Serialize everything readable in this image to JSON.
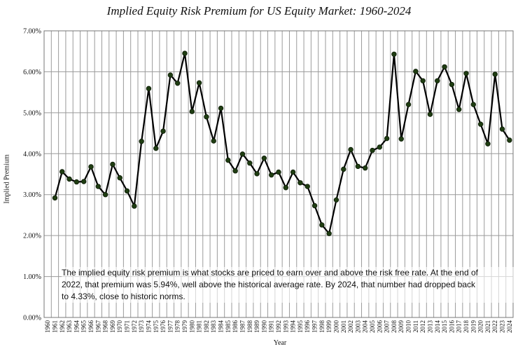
{
  "chart_data": {
    "type": "line",
    "title": "Implied Equity Risk Premium for US Equity Market: 1960-2024",
    "xlabel": "Year",
    "ylabel": "Implied Premium",
    "ylim": [
      0,
      7
    ],
    "y_ticks": [
      "0.00%",
      "1.00%",
      "2.00%",
      "3.00%",
      "4.00%",
      "5.00%",
      "6.00%",
      "7.00%"
    ],
    "grid": true,
    "x": [
      "1960",
      "1961",
      "1962",
      "1963",
      "1964",
      "1965",
      "1966",
      "1967",
      "1968",
      "1969",
      "1970",
      "1971",
      "1972",
      "1973",
      "1974",
      "1975",
      "1976",
      "1977",
      "1978",
      "1979",
      "1980",
      "1981",
      "1982",
      "1983",
      "1984",
      "1985",
      "1986",
      "1987",
      "1988",
      "1989",
      "1990",
      "1991",
      "1992",
      "1993",
      "1994",
      "1995",
      "1996",
      "1997",
      "1998",
      "1999",
      "2000",
      "2001",
      "2002",
      "2003",
      "2004",
      "2005",
      "2006",
      "2007",
      "2008",
      "2009",
      "2010",
      "2011",
      "2012",
      "2013",
      "2014",
      "2015",
      "2016",
      "2017",
      "2018",
      "2019",
      "2020",
      "2021",
      "2022",
      "2023",
      "2024"
    ],
    "series": [
      {
        "color": "#000000",
        "marker_color": "#1f3d12",
        "values": [
          null,
          2.92,
          3.56,
          3.38,
          3.31,
          3.32,
          3.68,
          3.2,
          3.0,
          3.74,
          3.41,
          3.09,
          2.72,
          4.3,
          5.59,
          4.13,
          4.55,
          5.92,
          5.72,
          6.45,
          5.03,
          5.73,
          4.9,
          4.31,
          5.11,
          3.84,
          3.58,
          3.99,
          3.77,
          3.51,
          3.89,
          3.48,
          3.55,
          3.17,
          3.55,
          3.29,
          3.2,
          2.73,
          2.26,
          2.05,
          2.87,
          3.62,
          4.1,
          3.69,
          3.65,
          4.08,
          4.16,
          4.37,
          6.43,
          4.36,
          5.2,
          6.01,
          5.78,
          4.96,
          5.78,
          6.12,
          5.69,
          5.08,
          5.96,
          5.2,
          4.72,
          4.24,
          5.94,
          4.6,
          4.33
        ]
      }
    ]
  },
  "annotation": {
    "line1": "The implied equity risk premium is what stocks are priced to earn over and above the risk free rate. At the end of",
    "line2": "2022, that premium was 5.94%, well above the historical average rate. By 2024, that number had dropped back",
    "line3": "to 4.33%, close to historic norms."
  }
}
